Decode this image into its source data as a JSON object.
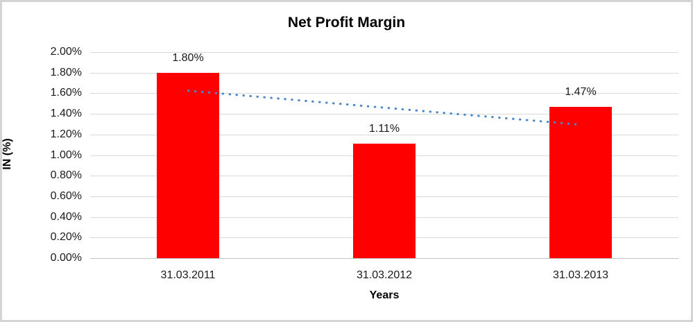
{
  "window": {
    "background_color": "#FFFFFF",
    "border_color": "#D4D4D4"
  },
  "chart_data": {
    "type": "bar",
    "title": "Net Profit Margin",
    "xlabel": "Years",
    "ylabel": "IN (%)",
    "categories": [
      "31.03.2011",
      "31.03.2012",
      "31.03.2013"
    ],
    "values": [
      1.8,
      1.11,
      1.47
    ],
    "data_labels": [
      "1.80%",
      "1.11%",
      "1.47%"
    ],
    "ylim": [
      0,
      2.0
    ],
    "ytick_step": 0.2,
    "ytick_labels": [
      "0.00%",
      "0.20%",
      "0.40%",
      "0.60%",
      "0.80%",
      "1.00%",
      "1.20%",
      "1.40%",
      "1.60%",
      "1.80%",
      "2.00%"
    ],
    "grid": true,
    "legend": "none",
    "trendline": {
      "type": "linear",
      "style": "dotted",
      "start_value": 1.625,
      "end_value": 1.295
    },
    "colors": {
      "bar": "#FF0000",
      "trendline": "#4A87C9",
      "gridline": "#D9D9D9",
      "axis_text": "#1A1A1A",
      "title_text": "#000000"
    }
  }
}
